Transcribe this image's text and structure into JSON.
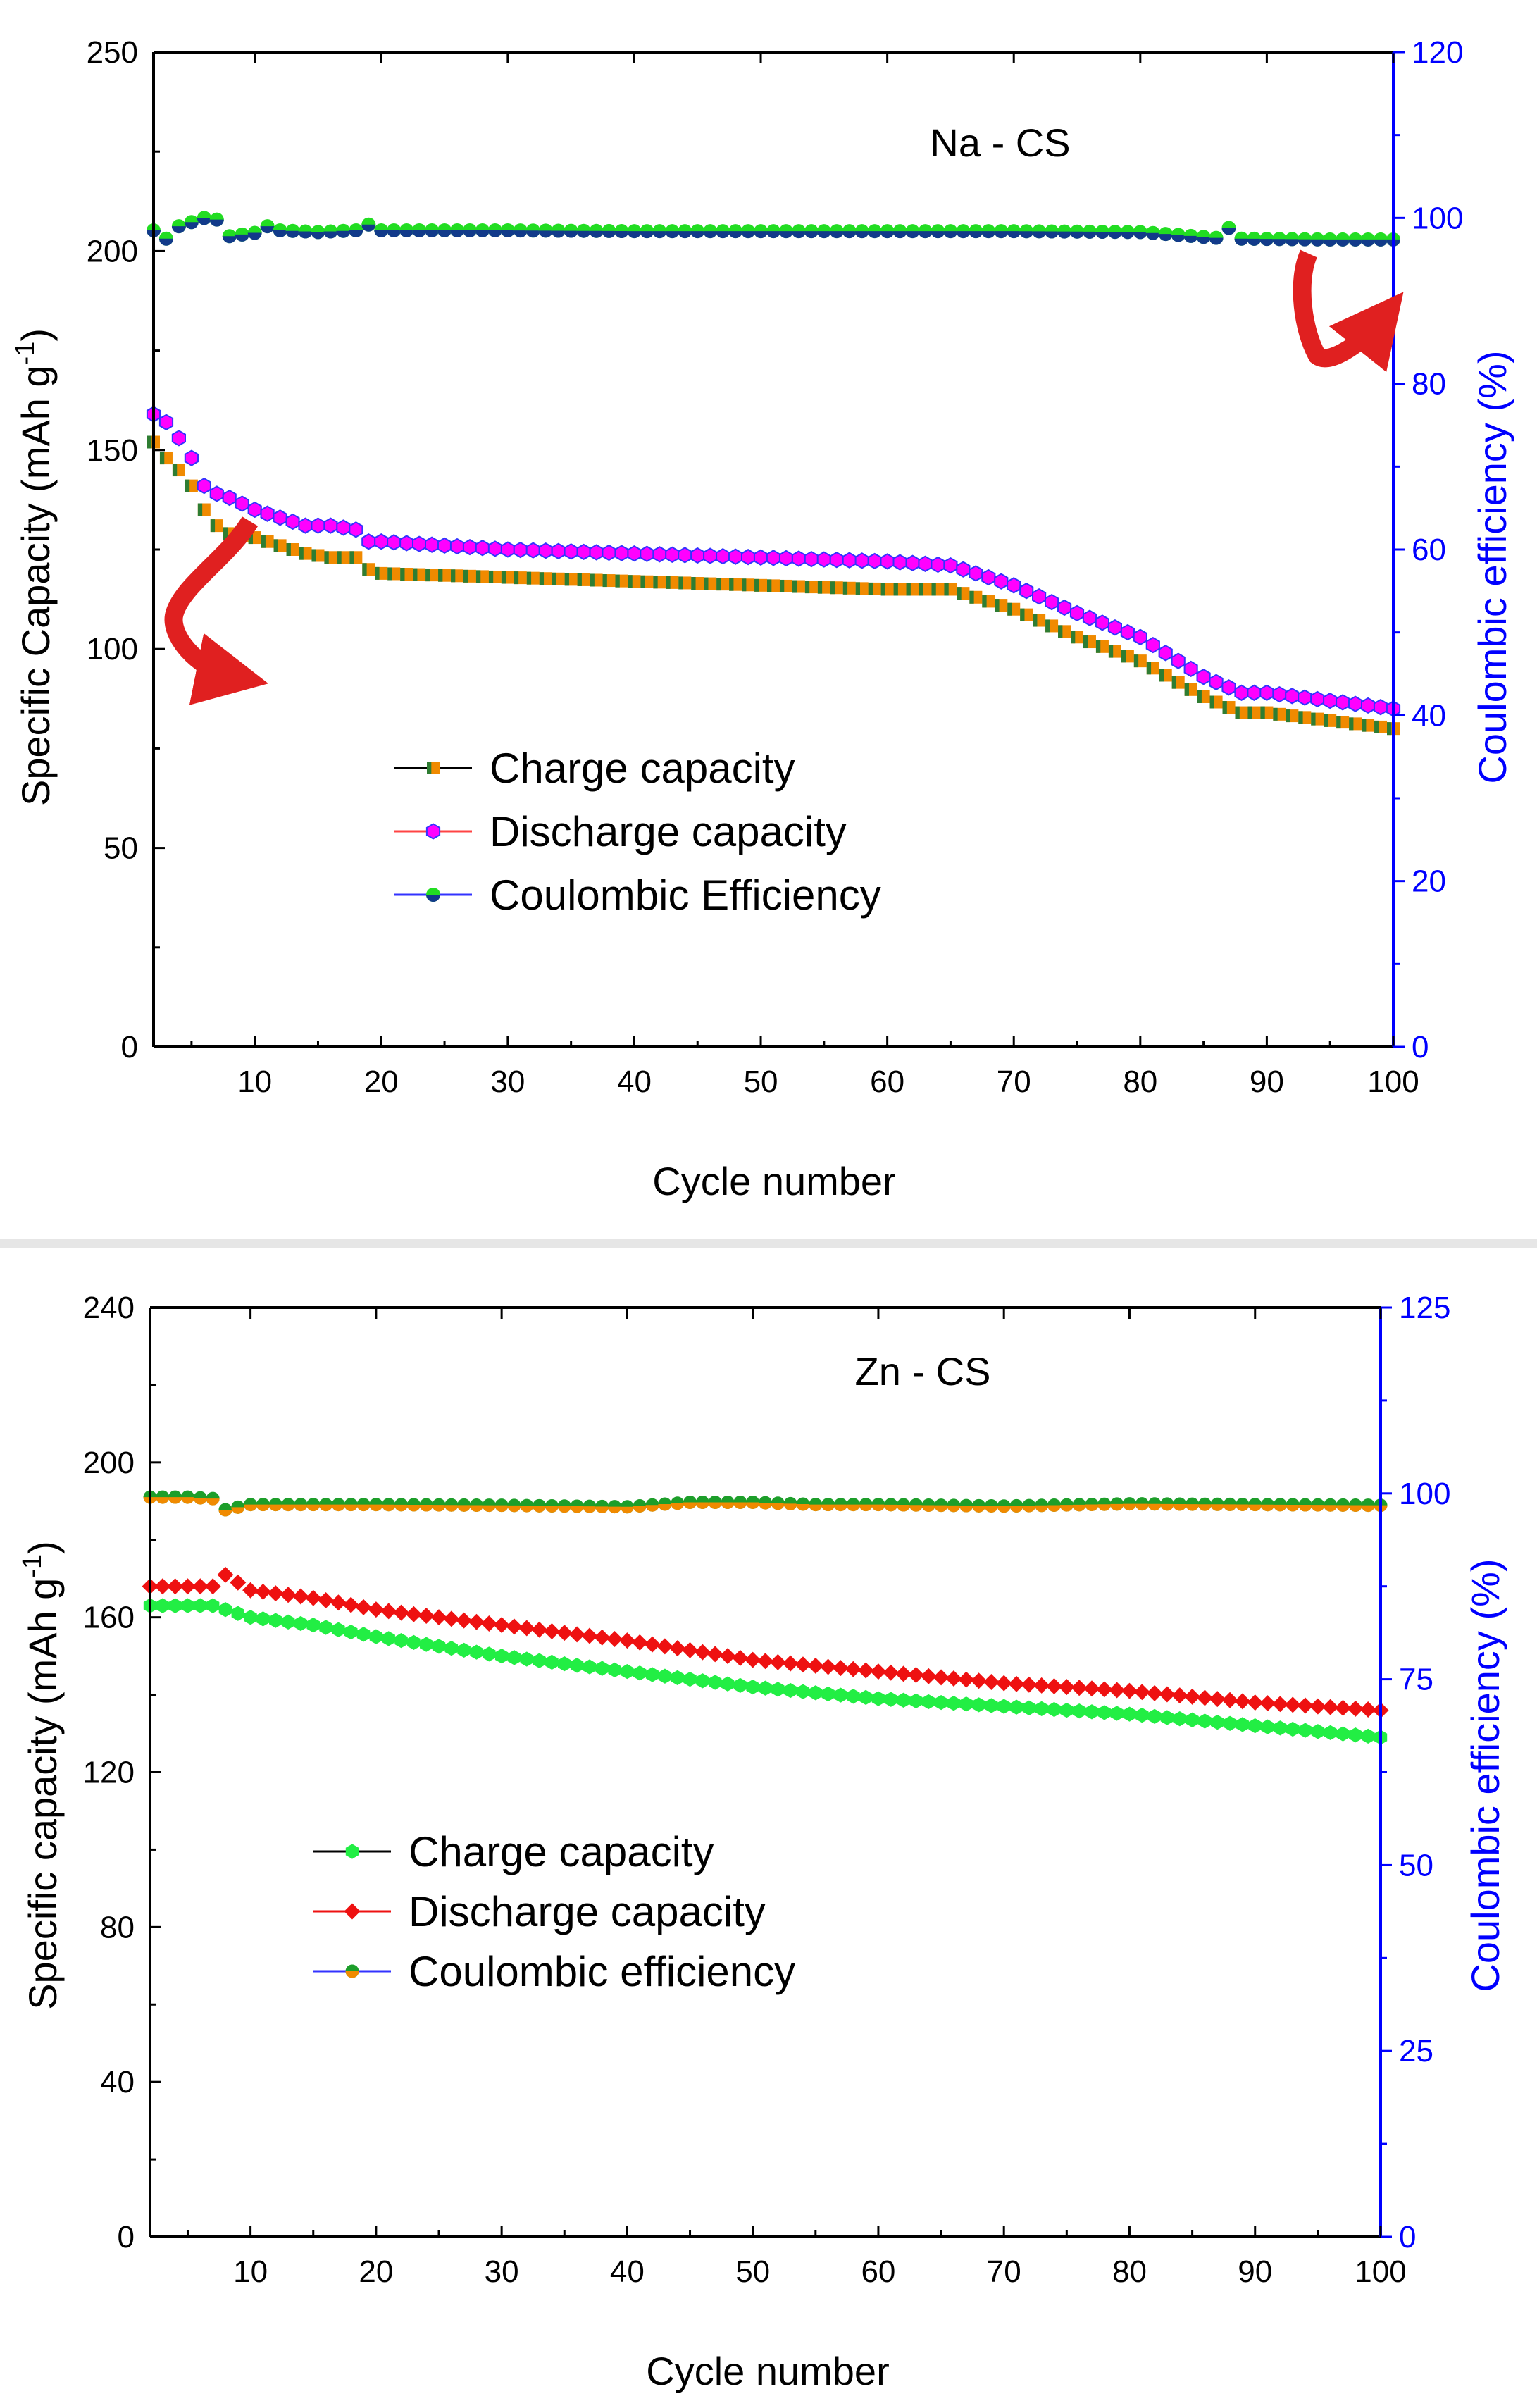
{
  "colors": {
    "charge_na": "#f08a00",
    "charge_na_dark": "#2e7d32",
    "discharge_na": "#ff00ff",
    "discharge_na_dark": "#3333ff",
    "ce_na": "#22dd22",
    "ce_na_dark": "#123a8a",
    "charge_zn": "#22ee44",
    "discharge_zn": "#ee1111",
    "ce_zn": "#1d9e2a",
    "ce_zn_dark": "#f08a00",
    "right_axis": "#0000ff",
    "arrow": "#e02020"
  },
  "chart_data": [
    {
      "type": "scatter",
      "title": "Na - CS",
      "xlabel": "Cycle number",
      "ylabel": "Specific Capacity (mAh g-1)",
      "ylabel_main": "Specific Capacity (mAh g",
      "ylabel_sup": "-1",
      "ylabel_close": ")",
      "y2label": "Coulombic efficiency (%)",
      "xlim": [
        2,
        100
      ],
      "ylim": [
        0,
        250
      ],
      "y2lim": [
        0,
        120
      ],
      "xticks": [
        10,
        20,
        30,
        40,
        50,
        60,
        70,
        80,
        90,
        100
      ],
      "xtick_labels": [
        "10",
        "20",
        "30",
        "40",
        "50",
        "60",
        "70",
        "80",
        "90",
        "100"
      ],
      "yticks": [
        0,
        50,
        100,
        150,
        200,
        250
      ],
      "ytick_labels": [
        "0",
        "50",
        "100",
        "150",
        "200",
        "250"
      ],
      "y2ticks": [
        0,
        20,
        40,
        60,
        80,
        100,
        120
      ],
      "y2tick_labels": [
        "0",
        "20",
        "40",
        "60",
        "80",
        "100",
        "120"
      ],
      "legend": [
        "Charge capacity",
        "Discharge capacity",
        "Coulombic Efficiency"
      ],
      "series": [
        {
          "name": "Charge capacity",
          "axis": "left",
          "x": [
            2,
            3,
            4,
            5,
            6,
            7,
            8,
            10,
            12,
            14,
            16,
            18,
            19,
            20,
            25,
            30,
            35,
            40,
            45,
            50,
            55,
            60,
            65,
            66,
            70,
            75,
            80,
            85,
            88,
            90,
            95,
            100
          ],
          "values": [
            152,
            148,
            145,
            141,
            135,
            131,
            129,
            128,
            126,
            124,
            123,
            123,
            120,
            119,
            118.5,
            118,
            117.5,
            117,
            116.5,
            116,
            115.5,
            115,
            115,
            114,
            110,
            103,
            97,
            88,
            84,
            84,
            82,
            80
          ]
        },
        {
          "name": "Discharge capacity",
          "axis": "left",
          "x": [
            2,
            3,
            4,
            5,
            6,
            7,
            8,
            10,
            12,
            14,
            16,
            18,
            19,
            20,
            25,
            30,
            35,
            40,
            45,
            50,
            55,
            60,
            65,
            66,
            70,
            75,
            80,
            85,
            88,
            90,
            95,
            100
          ],
          "values": [
            159,
            157,
            153,
            148,
            141,
            139,
            138,
            135,
            133,
            131,
            131,
            130,
            127,
            127,
            126,
            125,
            124.5,
            124,
            123.5,
            123,
            122.5,
            122,
            121,
            120,
            116,
            109,
            103,
            93,
            89,
            89,
            87,
            85
          ]
        },
        {
          "name": "Coulombic Efficiency",
          "axis": "right",
          "x": [
            2,
            3,
            4,
            5,
            6,
            7,
            8,
            9,
            10,
            11,
            12,
            15,
            18,
            19,
            20,
            30,
            40,
            50,
            60,
            70,
            80,
            86,
            87,
            88,
            95,
            100
          ],
          "values": [
            98.5,
            97.5,
            99,
            99.5,
            100,
            99.8,
            97.8,
            98,
            98.2,
            99,
            98.5,
            98.3,
            98.5,
            99.2,
            98.5,
            98.5,
            98.4,
            98.4,
            98.4,
            98.4,
            98.3,
            97.6,
            98.8,
            97.5,
            97.4,
            97.4
          ]
        }
      ]
    },
    {
      "type": "scatter",
      "title": "Zn - CS",
      "xlabel": "Cycle number",
      "ylabel": "Specific capacity (mAh g-1)",
      "ylabel_main": "Specific capacity (mAh g",
      "ylabel_sup": "-1",
      "ylabel_close": ")",
      "y2label": "Coulombic efficiency (%)",
      "xlim": [
        2,
        100
      ],
      "ylim": [
        0,
        240
      ],
      "y2lim": [
        0,
        125
      ],
      "xticks": [
        10,
        20,
        30,
        40,
        50,
        60,
        70,
        80,
        90,
        100
      ],
      "xtick_labels": [
        "10",
        "20",
        "30",
        "40",
        "50",
        "60",
        "70",
        "80",
        "90",
        "100"
      ],
      "yticks": [
        0,
        40,
        80,
        120,
        160,
        200,
        240
      ],
      "ytick_labels": [
        "0",
        "40",
        "80",
        "120",
        "160",
        "200",
        "240"
      ],
      "y2ticks": [
        0,
        25,
        50,
        75,
        100,
        125
      ],
      "y2tick_labels": [
        "0",
        "25",
        "50",
        "75",
        "100",
        "125"
      ],
      "legend": [
        "Charge capacity",
        "Discharge capacity",
        "Coulombic efficiency"
      ],
      "series": [
        {
          "name": "Charge capacity",
          "axis": "left",
          "x": [
            2,
            5,
            7,
            8,
            10,
            15,
            20,
            30,
            40,
            50,
            60,
            70,
            80,
            90,
            100
          ],
          "values": [
            163,
            163,
            163,
            162,
            160,
            158,
            155,
            150,
            146,
            142,
            139,
            137,
            135,
            132,
            129
          ]
        },
        {
          "name": "Discharge capacity",
          "axis": "left",
          "x": [
            2,
            5,
            7,
            8,
            9,
            10,
            15,
            20,
            30,
            40,
            50,
            60,
            70,
            80,
            90,
            100
          ],
          "values": [
            168,
            168,
            168,
            171,
            169,
            167,
            165,
            162,
            158,
            154,
            149,
            146,
            143,
            141,
            138,
            136
          ]
        },
        {
          "name": "Coulombic efficiency",
          "axis": "right",
          "x": [
            2,
            5,
            7,
            8,
            10,
            20,
            30,
            40,
            45,
            50,
            55,
            60,
            70,
            80,
            90,
            100
          ],
          "values": [
            99.5,
            99.5,
            99.3,
            97.8,
            98.5,
            98.5,
            98.4,
            98.2,
            98.8,
            98.8,
            98.5,
            98.5,
            98.3,
            98.6,
            98.5,
            98.4
          ]
        }
      ]
    }
  ]
}
